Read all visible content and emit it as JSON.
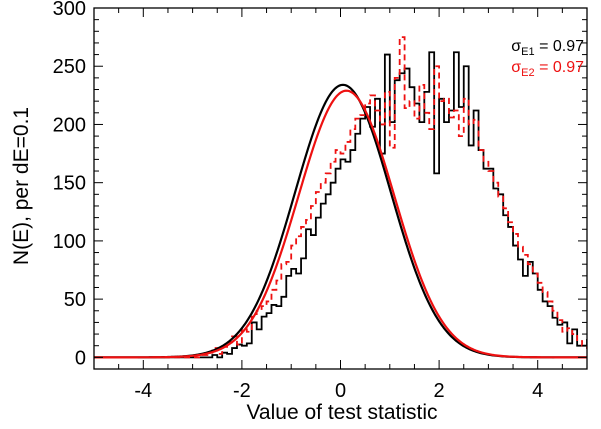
{
  "chart_data": {
    "type": "line",
    "title": "",
    "xlabel": "Value of test statistic",
    "ylabel": "N(E), per dE=0.1",
    "xlim": [
      -5,
      5
    ],
    "ylim": [
      -10,
      300
    ],
    "xticks": [
      -4,
      -2,
      0,
      2,
      4
    ],
    "yticks": [
      0,
      50,
      100,
      150,
      200,
      250,
      300
    ],
    "grid": false,
    "legend_position": "top-right",
    "legend": [
      {
        "symbol": "σ",
        "subscript": "E1",
        "text": " = 0.97",
        "color": "#000000"
      },
      {
        "symbol": "σ",
        "subscript": "E2",
        "text": " = 0.97",
        "color": "#ee1111"
      }
    ],
    "bin_width": 0.1,
    "series": [
      {
        "kind": "histogram",
        "style": "solid",
        "color": "#000000",
        "x_start": -3.0,
        "counts": [
          0,
          0,
          0,
          0,
          2,
          0,
          4,
          3,
          8,
          11,
          10,
          12,
          30,
          24,
          35,
          38,
          45,
          44,
          52,
          70,
          76,
          72,
          85,
          110,
          105,
          120,
          132,
          140,
          150,
          162,
          170,
          168,
          178,
          192,
          205,
          215,
          198,
          222,
          175,
          260,
          202,
          238,
          244,
          248,
          232,
          218,
          202,
          228,
          262,
          158,
          222,
          202,
          212,
          262,
          215,
          250,
          182,
          212,
          178,
          162,
          162,
          145,
          140,
          122,
          112,
          96,
          84,
          70,
          82,
          72,
          58,
          48,
          44,
          34,
          28,
          30,
          12,
          24,
          10,
          10,
          15,
          5,
          3,
          6,
          0,
          2,
          0,
          0,
          2,
          0
        ]
      },
      {
        "kind": "histogram",
        "style": "dashed",
        "color": "#ee1111",
        "x_start": -3.0,
        "counts": [
          0,
          0,
          2,
          4,
          8,
          3,
          9,
          13,
          18,
          11,
          25,
          22,
          35,
          40,
          44,
          48,
          58,
          66,
          80,
          82,
          96,
          104,
          112,
          118,
          130,
          142,
          150,
          158,
          168,
          178,
          175,
          185,
          196,
          205,
          208,
          218,
          225,
          212,
          200,
          228,
          180,
          240,
          275,
          214,
          220,
          205,
          234,
          210,
          196,
          250,
          220,
          222,
          206,
          212,
          190,
          222,
          200,
          204,
          178,
          168,
          160,
          150,
          138,
          128,
          116,
          106,
          95,
          88,
          80,
          72,
          64,
          56,
          48,
          40,
          32,
          22,
          25,
          20,
          14,
          10,
          8,
          6,
          5,
          4,
          3,
          2,
          1,
          1,
          0,
          0
        ]
      },
      {
        "kind": "gaussian-fit",
        "style": "solid",
        "color": "#000000",
        "amplitude": 234,
        "mean": 0.05,
        "sigma": 0.97
      },
      {
        "kind": "gaussian-fit",
        "style": "solid",
        "color": "#ee1111",
        "amplitude": 229,
        "mean": 0.12,
        "sigma": 0.97
      }
    ]
  }
}
